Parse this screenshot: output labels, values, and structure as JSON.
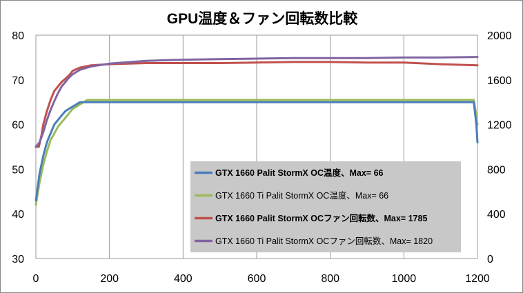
{
  "chart_data": {
    "type": "line",
    "title": "GPU温度＆ファン回転数比較",
    "xlim": [
      0,
      1200
    ],
    "ylim_left": [
      30,
      80
    ],
    "ylim_right": [
      0,
      2000
    ],
    "x_ticks": [
      "0",
      "200",
      "400",
      "600",
      "800",
      "1000",
      "1200"
    ],
    "y_left_ticks": [
      "30",
      "40",
      "50",
      "60",
      "70",
      "80"
    ],
    "y_right_ticks": [
      "0",
      "400",
      "800",
      "1200",
      "1600",
      "2000"
    ],
    "grid": "vertical",
    "legend_position": "center-right",
    "series": [
      {
        "name": "GTX 1660  Palit StormX OC温度、Max= 66",
        "axis": "left",
        "color": "#4a7ebb",
        "bold": true,
        "x": [
          0,
          10,
          20,
          30,
          40,
          50,
          60,
          70,
          80,
          90,
          100,
          110,
          120,
          130,
          140,
          160,
          200,
          300,
          400,
          500,
          600,
          700,
          800,
          900,
          1000,
          1100,
          1180,
          1190,
          1197,
          1200
        ],
        "y": [
          43,
          49,
          53,
          56,
          58,
          60,
          61,
          62,
          63,
          63.5,
          64,
          64.5,
          65,
          65,
          65,
          65,
          65,
          65,
          65,
          65,
          65,
          65,
          65,
          65,
          65,
          65,
          65,
          65,
          60,
          56
        ]
      },
      {
        "name": "GTX 1660 Ti Palit StormX  OC温度、Max= 66",
        "axis": "left",
        "color": "#9bbb59",
        "bold": false,
        "x": [
          0,
          10,
          20,
          30,
          40,
          50,
          60,
          70,
          80,
          90,
          100,
          110,
          120,
          130,
          140,
          160,
          200,
          300,
          400,
          500,
          600,
          700,
          800,
          900,
          1000,
          1100,
          1190,
          1195,
          1200
        ],
        "y": [
          42,
          47,
          51,
          54,
          56.5,
          58,
          59.5,
          60.5,
          61.5,
          62.5,
          63.5,
          64,
          64.5,
          65,
          65.5,
          65.5,
          65.5,
          65.5,
          65.5,
          65.5,
          65.5,
          65.5,
          65.5,
          65.5,
          65.5,
          65.5,
          65.5,
          63,
          60
        ]
      },
      {
        "name": "GTX 1660  Palit StormX OCファン回転数、Max= 1785",
        "axis": "right",
        "color": "#c0504d",
        "bold": true,
        "x": [
          0,
          8,
          15,
          20,
          30,
          40,
          50,
          60,
          70,
          80,
          90,
          100,
          120,
          150,
          200,
          300,
          400,
          500,
          600,
          700,
          800,
          900,
          1000,
          1100,
          1200
        ],
        "y": [
          1000,
          1000,
          1100,
          1200,
          1320,
          1420,
          1500,
          1540,
          1580,
          1610,
          1640,
          1680,
          1710,
          1730,
          1740,
          1750,
          1750,
          1750,
          1755,
          1760,
          1760,
          1755,
          1755,
          1740,
          1730
        ]
      },
      {
        "name": "GTX 1660 Ti Palit StormX  OCファン回転数、Max= 1820",
        "axis": "right",
        "color": "#8064a2",
        "bold": false,
        "x": [
          0,
          10,
          20,
          30,
          40,
          50,
          60,
          70,
          80,
          90,
          100,
          120,
          150,
          200,
          300,
          400,
          500,
          600,
          700,
          800,
          900,
          1000,
          1100,
          1200
        ],
        "y": [
          1000,
          1040,
          1130,
          1240,
          1330,
          1410,
          1480,
          1540,
          1580,
          1620,
          1650,
          1690,
          1720,
          1745,
          1770,
          1780,
          1785,
          1790,
          1795,
          1795,
          1795,
          1800,
          1800,
          1805
        ]
      }
    ]
  }
}
